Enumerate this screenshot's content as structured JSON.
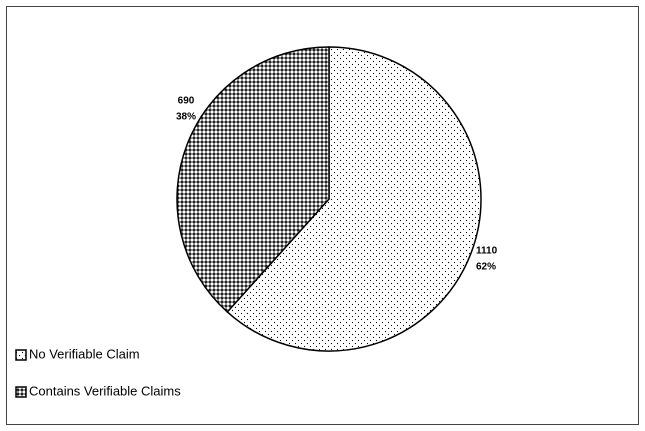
{
  "chart_data": {
    "type": "pie",
    "categories": [
      "No Verifiable Claim",
      "Contains Verifiable Claims"
    ],
    "values": [
      1110,
      690
    ],
    "percent_labels": [
      "62%",
      "38%"
    ],
    "legend": "bottom-left"
  }
}
